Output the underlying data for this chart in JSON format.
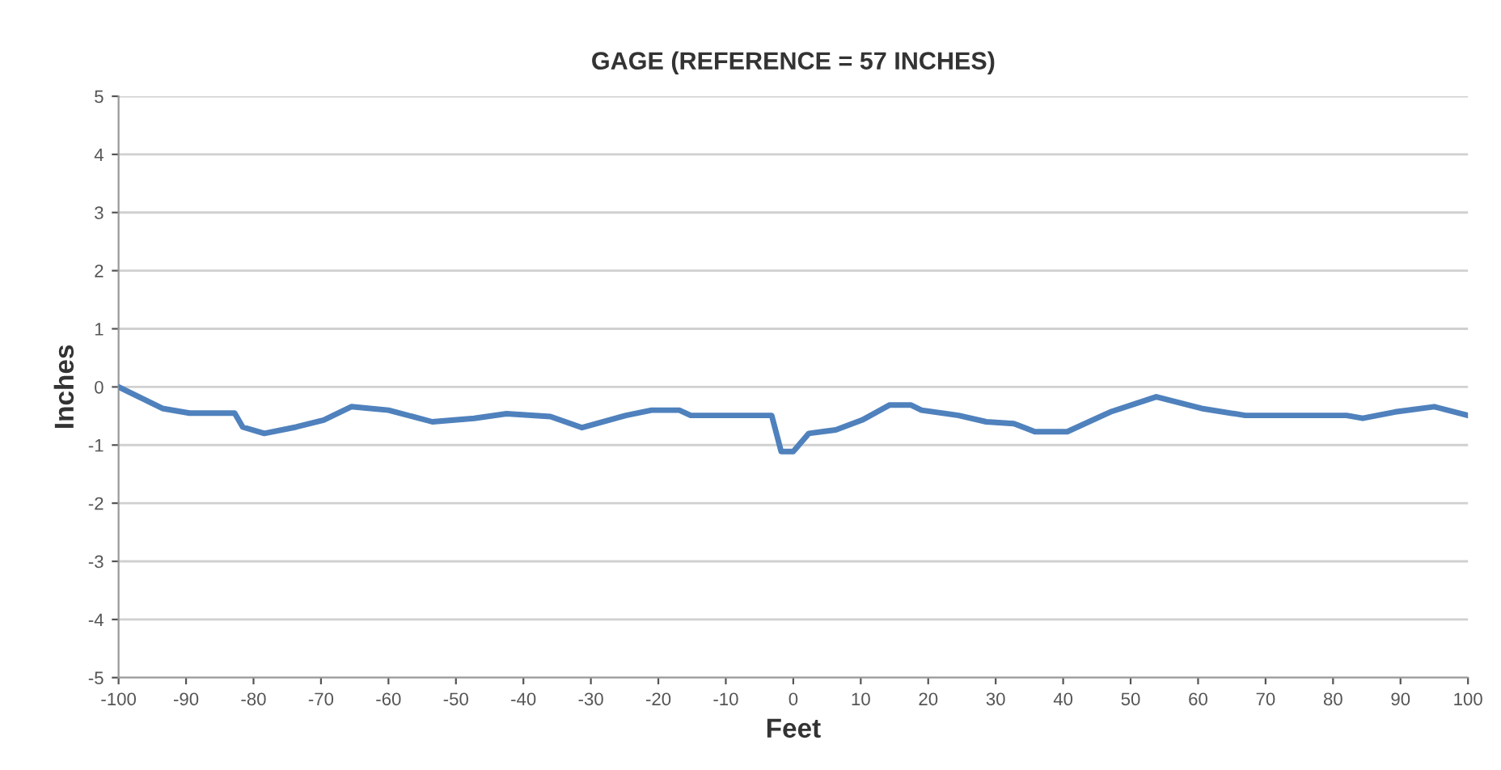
{
  "chart_data": {
    "type": "line",
    "title": "GAGE (REFERENCE = 57 INCHES)",
    "xlabel": "Feet",
    "ylabel": "Inches",
    "xlim": [
      -100,
      100
    ],
    "xticks": [
      -100,
      -90,
      -80,
      -70,
      -60,
      -50,
      -40,
      -30,
      -20,
      -10,
      0,
      10,
      20,
      30,
      40,
      50,
      60,
      70,
      80,
      90,
      100
    ],
    "ylim": [
      -5,
      5
    ],
    "yticks": [
      -5,
      -4,
      -3,
      -2,
      -1,
      0,
      1,
      2,
      3,
      4,
      5
    ],
    "grid": "y",
    "legend": false,
    "marker": "none",
    "line_style": "solid",
    "series": [
      {
        "color": "#4f81bd",
        "x": [
          -100,
          -93.5,
          -89.5,
          -82.8,
          -81.6,
          -78.4,
          -73.7,
          -69.6,
          -65.5,
          -60,
          -53.5,
          -47.3,
          -42.5,
          -36,
          -31.3,
          -24.8,
          -21,
          -16.9,
          -15.2,
          -3.2,
          -1.8,
          0,
          2.3,
          6.3,
          10.2,
          14.3,
          17.4,
          19,
          24.5,
          28.6,
          32.7,
          35.8,
          40.6,
          47,
          53.8,
          60.5,
          67,
          82,
          84.4,
          89.2,
          95,
          100
        ],
        "values": [
          0,
          -0.37,
          -0.45,
          -0.45,
          -0.69,
          -0.8,
          -0.69,
          -0.57,
          -0.34,
          -0.4,
          -0.6,
          -0.54,
          -0.46,
          -0.51,
          -0.7,
          -0.49,
          -0.4,
          -0.4,
          -0.49,
          -0.49,
          -1.11,
          -1.11,
          -0.8,
          -0.74,
          -0.57,
          -0.31,
          -0.31,
          -0.4,
          -0.49,
          -0.6,
          -0.63,
          -0.77,
          -0.77,
          -0.43,
          -0.17,
          -0.37,
          -0.49,
          -0.49,
          -0.54,
          -0.43,
          -0.34,
          -0.49
        ]
      }
    ]
  }
}
